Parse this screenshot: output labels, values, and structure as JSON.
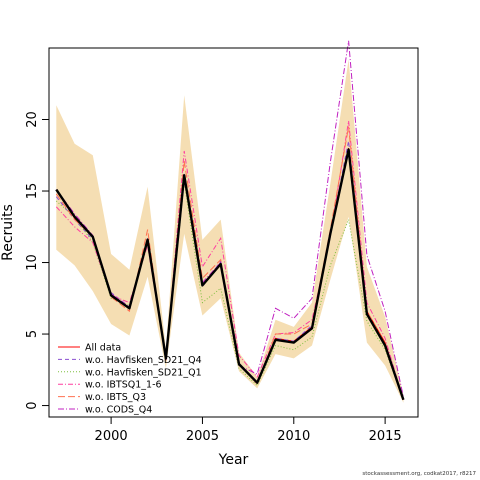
{
  "chart_data": {
    "type": "line",
    "xlabel": "Year",
    "ylabel": "Recruits",
    "xlim": [
      1996.6,
      2016.8
    ],
    "ylim": [
      -0.8,
      25
    ],
    "xticks": [
      2000,
      2005,
      2010,
      2015
    ],
    "yticks": [
      0,
      5,
      10,
      15,
      20
    ],
    "x": [
      1997,
      1998,
      1999,
      2000,
      2001,
      2002,
      2003,
      2004,
      2005,
      2006,
      2007,
      2008,
      2009,
      2010,
      2011,
      2012,
      2013,
      2014,
      2015,
      2016
    ],
    "band": {
      "color": "#f5deb3",
      "lower": [
        10.9,
        9.8,
        8.0,
        5.7,
        4.9,
        9.0,
        2.6,
        12.0,
        6.3,
        7.5,
        2.4,
        1.2,
        3.6,
        3.3,
        4.2,
        8.8,
        13.2,
        4.4,
        2.8,
        0.2
      ],
      "upper": [
        21.0,
        18.3,
        17.5,
        10.6,
        9.5,
        15.3,
        4.0,
        21.7,
        11.6,
        13.0,
        3.7,
        2.0,
        6.0,
        5.5,
        7.2,
        15.5,
        24.2,
        9.7,
        6.2,
        0.7
      ]
    },
    "series": [
      {
        "name": "All data",
        "color": "#ff0000",
        "dash": "none",
        "values": [
          15.1,
          13.1,
          11.8,
          7.8,
          6.8,
          11.6,
          3.3,
          16.1,
          8.4,
          10.0,
          2.9,
          1.6,
          4.7,
          4.5,
          5.5,
          12.1,
          18.0,
          6.6,
          4.4,
          0.4
        ]
      },
      {
        "name": "w.o. Havfisken_SD21_Q4",
        "color": "#8a4fd0",
        "dash": "4,3",
        "values": [
          14.6,
          13.0,
          11.6,
          7.9,
          6.9,
          11.7,
          3.3,
          16.2,
          8.3,
          10.1,
          2.9,
          1.6,
          4.7,
          4.5,
          5.6,
          12.0,
          18.5,
          6.4,
          4.2,
          0.4
        ]
      },
      {
        "name": "w.o. Havfisken_SD21_Q1",
        "color": "#7fbf3f",
        "dash": "1,2",
        "values": [
          14.3,
          13.2,
          11.4,
          7.5,
          7.0,
          11.3,
          3.2,
          15.6,
          7.2,
          8.2,
          2.6,
          1.4,
          4.2,
          3.9,
          4.8,
          9.8,
          13.0,
          5.9,
          3.9,
          0.4
        ]
      },
      {
        "name": "w.o. IBTSQ1_1-6",
        "color": "#ff3fa0",
        "dash": "5,2,1,2",
        "values": [
          13.9,
          12.5,
          11.4,
          7.7,
          7.2,
          11.2,
          3.2,
          17.8,
          9.7,
          11.7,
          3.5,
          2.0,
          5.0,
          5.1,
          6.0,
          11.8,
          19.9,
          7.2,
          4.7,
          0.4
        ]
      },
      {
        "name": "w.o. IBTS_Q3",
        "color": "#ff7050",
        "dash": "7,3",
        "values": [
          14.8,
          13.0,
          11.8,
          7.6,
          6.6,
          12.3,
          3.1,
          17.1,
          8.9,
          10.2,
          2.9,
          1.5,
          5.0,
          5.0,
          5.7,
          12.3,
          19.5,
          6.6,
          4.3,
          0.4
        ]
      },
      {
        "name": "w.o. CODS_Q4",
        "color": "#c020c0",
        "dash": "6,2,1,2",
        "values": [
          15.1,
          13.4,
          11.9,
          7.8,
          6.9,
          11.5,
          3.2,
          15.8,
          8.6,
          10.0,
          2.8,
          2.2,
          6.8,
          6.1,
          7.5,
          17.0,
          25.5,
          10.5,
          6.6,
          0.6
        ]
      }
    ],
    "mean_line": {
      "color": "#000000",
      "values": [
        15.1,
        13.2,
        11.8,
        7.7,
        6.8,
        11.6,
        3.3,
        16.1,
        8.4,
        9.9,
        2.9,
        1.6,
        4.6,
        4.4,
        5.4,
        12.0,
        17.9,
        6.4,
        4.2,
        0.4
      ]
    },
    "legend_position": "bottom-left"
  },
  "footer_text": "stockassessment.org, codkat2017, r8217"
}
